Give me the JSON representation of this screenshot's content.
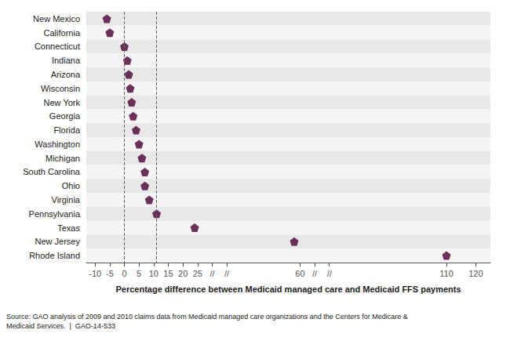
{
  "chart_data": {
    "type": "scatter",
    "orientation": "horizontal",
    "categories": [
      "New Mexico",
      "California",
      "Connecticut",
      "Indiana",
      "Arizona",
      "Wisconsin",
      "New York",
      "Georgia",
      "Florida",
      "Washington",
      "Michigan",
      "South Carolina",
      "Ohio",
      "Virginia",
      "Pennsylvania",
      "Texas",
      "New Jersey",
      "Rhode Island"
    ],
    "values": [
      -6,
      -5,
      0,
      1,
      1.5,
      2,
      2.5,
      3,
      4,
      5,
      6,
      7,
      7,
      8.5,
      11,
      24,
      58,
      110
    ],
    "color": "#4a0033",
    "marker": "pentagon",
    "xlabel": "Percentage difference between Medicaid managed care and Medicaid FFS payments",
    "xlim": [
      -13,
      125
    ],
    "xticks": [
      -10,
      -5,
      0,
      5,
      10,
      15,
      20,
      25,
      {
        "value": 30,
        "label": "//"
      },
      {
        "value": 35,
        "label": "//"
      },
      60,
      {
        "value": 65,
        "label": "//"
      },
      {
        "value": 70,
        "label": "//"
      },
      110,
      120
    ],
    "reference_lines": [
      0,
      11
    ],
    "note": "Source: GAO analysis of 2009 and 2010 claims data from Medicaid managed care organizations and the Centers for Medicare &\nMedicaid Services.  |  GAO-14-533",
    "grid": false
  }
}
